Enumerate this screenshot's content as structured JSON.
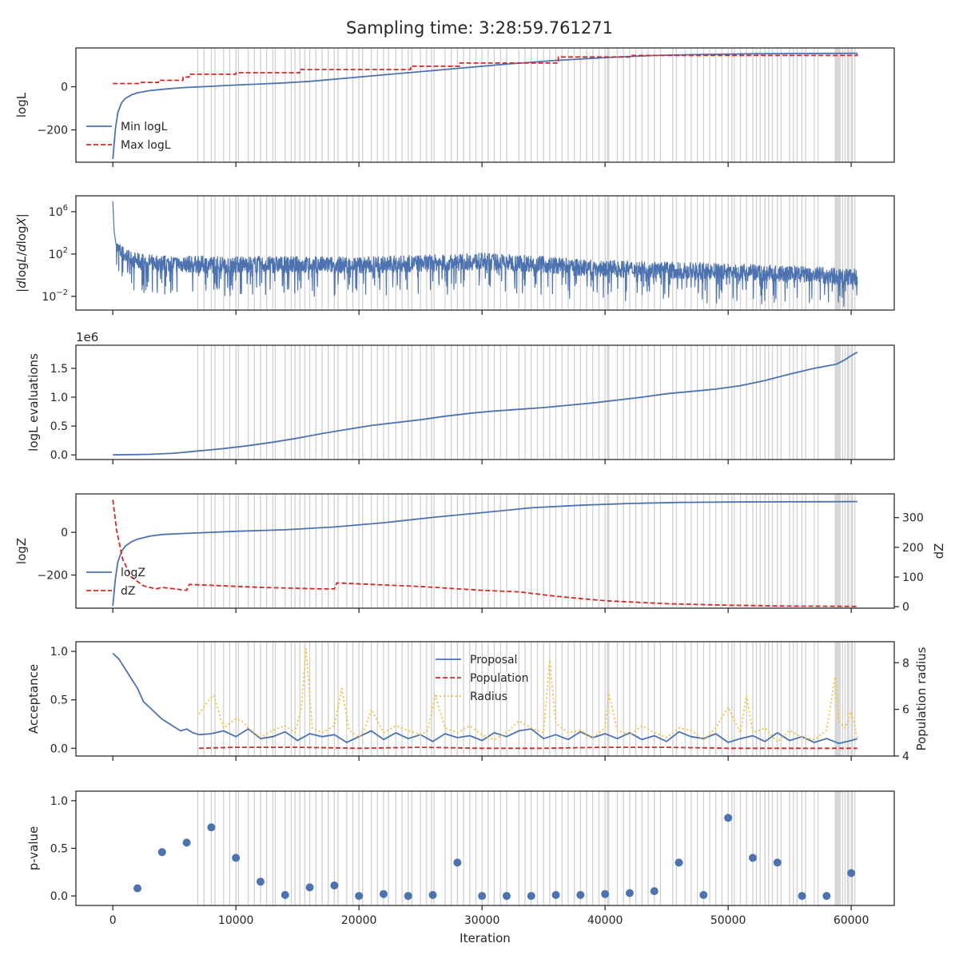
{
  "title": "Sampling time: 3:28:59.761271",
  "chart_data": [
    {
      "type": "line",
      "ylabel": "logL",
      "xlim": [
        -3000,
        63500
      ],
      "ylim": [
        -350,
        180
      ],
      "yticks": [
        0,
        -200
      ],
      "ytick_labels": [
        "0",
        "−200"
      ],
      "legend": "lower-left",
      "series": [
        {
          "name": "Min logL",
          "color": "#4c72b0",
          "dash": "solid",
          "x": [
            0,
            200,
            400,
            700,
            1000,
            1500,
            2000,
            3000,
            4000,
            5000,
            6000,
            8000,
            10000,
            12000,
            14000,
            16000,
            18000,
            20000,
            24000,
            28000,
            32000,
            36000,
            40000,
            44000,
            48000,
            52000,
            56000,
            60500
          ],
          "y": [
            -335,
            -200,
            -120,
            -75,
            -55,
            -38,
            -28,
            -18,
            -12,
            -7,
            -3,
            2,
            8,
            13,
            18,
            25,
            35,
            45,
            65,
            85,
            105,
            122,
            135,
            145,
            150,
            153,
            154,
            155
          ]
        },
        {
          "name": "Max logL",
          "color": "#d62728",
          "dash": "dashed",
          "step": true,
          "x": [
            0,
            2000,
            2200,
            3500,
            3700,
            5500,
            5700,
            6000,
            6200,
            8000,
            10000,
            15000,
            15200,
            24000,
            24200,
            28000,
            28200,
            36000,
            36200,
            42000,
            60500
          ],
          "y": [
            15,
            15,
            20,
            20,
            30,
            30,
            45,
            45,
            58,
            58,
            65,
            65,
            80,
            80,
            95,
            95,
            110,
            110,
            138,
            145,
            152
          ]
        }
      ]
    },
    {
      "type": "line",
      "ylabel": "|dlogL/dlogX|",
      "ylabel_parts": [
        "|",
        "d",
        "log",
        "L",
        "/",
        "d",
        "log",
        "X",
        "|"
      ],
      "yscale": "log",
      "xlim": [
        -3000,
        63500
      ],
      "ylim_log10": [
        -3.3,
        7.5
      ],
      "yticks_log10": [
        6,
        2,
        -2
      ],
      "ytick_labels": [
        {
          "base": "10",
          "exp": "6"
        },
        {
          "base": "10",
          "exp": "2"
        },
        {
          "base": "10",
          "exp": "−2"
        }
      ],
      "series": [
        {
          "color": "#4c72b0",
          "style": "noisy",
          "x": [
            0,
            100,
            300,
            600,
            1000,
            2000,
            4000,
            8000,
            12000,
            20000,
            25000,
            30000,
            34000,
            38000,
            44000,
            50000,
            55000,
            60500
          ],
          "y_log10": [
            7,
            4.2,
            2.6,
            2.2,
            1.8,
            1.3,
            1.1,
            1.0,
            1.0,
            0.95,
            1.1,
            1.3,
            1.1,
            0.7,
            0.5,
            0.3,
            0.1,
            -0.2
          ]
        }
      ]
    },
    {
      "type": "line",
      "ylabel": "logL evaluations",
      "offset_text": "1e6",
      "xlim": [
        -3000,
        63500
      ],
      "ylim": [
        -0.08,
        1.9
      ],
      "yticks": [
        0.0,
        0.5,
        1.0,
        1.5
      ],
      "ytick_labels": [
        "0.0",
        "0.5",
        "1.0",
        "1.5"
      ],
      "series": [
        {
          "color": "#4c72b0",
          "dash": "solid",
          "x": [
            0,
            3000,
            5000,
            7000,
            9000,
            11000,
            13000,
            15000,
            17000,
            19000,
            21000,
            23000,
            25000,
            27000,
            29000,
            31000,
            33000,
            35000,
            37000,
            39000,
            41000,
            43000,
            45000,
            47000,
            49000,
            51000,
            53000,
            55000,
            57000,
            58800,
            59500,
            60000,
            60500
          ],
          "y": [
            0.0,
            0.01,
            0.03,
            0.07,
            0.11,
            0.16,
            0.22,
            0.29,
            0.37,
            0.44,
            0.51,
            0.56,
            0.61,
            0.67,
            0.72,
            0.76,
            0.79,
            0.82,
            0.86,
            0.9,
            0.95,
            1.0,
            1.06,
            1.1,
            1.14,
            1.2,
            1.29,
            1.4,
            1.5,
            1.57,
            1.65,
            1.72,
            1.78
          ]
        }
      ]
    },
    {
      "type": "line",
      "ylabel": "logZ",
      "ylabel_right": "dZ",
      "xlim": [
        -3000,
        63500
      ],
      "ylim": [
        -355,
        180
      ],
      "yticks": [
        0,
        -200
      ],
      "ytick_labels": [
        "0",
        "−200"
      ],
      "ylim_right": [
        -5,
        380
      ],
      "yticks_right": [
        0,
        100,
        200,
        300
      ],
      "ytick_labels_right": [
        "0",
        "100",
        "200",
        "300"
      ],
      "legend": "lower-left",
      "series": [
        {
          "name": "logZ",
          "color": "#4c72b0",
          "dash": "solid",
          "axis": "left",
          "x": [
            0,
            200,
            400,
            700,
            1000,
            1500,
            2000,
            3000,
            4000,
            6000,
            8000,
            10000,
            14000,
            18000,
            22000,
            26000,
            30000,
            34000,
            38000,
            42000,
            46000,
            50000,
            55000,
            60500
          ],
          "y": [
            -345,
            -220,
            -140,
            -90,
            -65,
            -45,
            -32,
            -18,
            -10,
            -5,
            0,
            5,
            12,
            25,
            45,
            70,
            92,
            115,
            127,
            135,
            140,
            142,
            143,
            144
          ]
        },
        {
          "name": "dZ",
          "color": "#d62728",
          "dash": "dashed",
          "axis": "right",
          "x": [
            0,
            300,
            800,
            1500,
            2500,
            3500,
            4000,
            6000,
            6200,
            8000,
            12000,
            17000,
            18000,
            18200,
            25000,
            30000,
            33000,
            36000,
            40000,
            45000,
            50000,
            55000,
            60500
          ],
          "y": [
            360,
            260,
            160,
            100,
            70,
            60,
            65,
            55,
            75,
            72,
            65,
            60,
            60,
            80,
            68,
            55,
            50,
            35,
            20,
            10,
            5,
            2,
            1
          ]
        }
      ]
    },
    {
      "type": "line",
      "ylabel": "Acceptance",
      "ylabel_right": "Population radius",
      "xlim": [
        -3000,
        63500
      ],
      "ylim": [
        -0.08,
        1.1
      ],
      "yticks": [
        0.0,
        0.5,
        1.0
      ],
      "ytick_labels": [
        "0.0",
        "0.5",
        "1.0"
      ],
      "ylim_right": [
        4,
        8.9
      ],
      "yticks_right": [
        4,
        6,
        8
      ],
      "ytick_labels_right": [
        "4",
        "6",
        "8"
      ],
      "legend": "upper-center",
      "series": [
        {
          "name": "Proposal",
          "color": "#4c72b0",
          "dash": "solid",
          "axis": "left",
          "x": [
            0,
            500,
            1000,
            1500,
            2000,
            2500,
            3000,
            3500,
            4000,
            4500,
            5000,
            5500,
            6000,
            6500,
            7000,
            8000,
            9000,
            10000,
            11000,
            12000,
            13000,
            14000,
            15000,
            16000,
            17000,
            18000,
            19000,
            20000,
            21000,
            22000,
            23000,
            24000,
            25000,
            26000,
            27000,
            28000,
            29000,
            30000,
            31000,
            32000,
            33000,
            34000,
            35000,
            36000,
            37000,
            38000,
            39000,
            40000,
            41000,
            42000,
            43000,
            44000,
            45000,
            46000,
            47000,
            48000,
            49000,
            50000,
            51000,
            52000,
            53000,
            54000,
            55000,
            56000,
            57000,
            58000,
            59000,
            60000,
            60500
          ],
          "y": [
            0.98,
            0.92,
            0.82,
            0.72,
            0.62,
            0.48,
            0.42,
            0.36,
            0.3,
            0.26,
            0.22,
            0.18,
            0.2,
            0.16,
            0.14,
            0.15,
            0.18,
            0.12,
            0.2,
            0.1,
            0.12,
            0.17,
            0.08,
            0.15,
            0.12,
            0.14,
            0.06,
            0.12,
            0.18,
            0.09,
            0.16,
            0.1,
            0.14,
            0.07,
            0.15,
            0.11,
            0.13,
            0.08,
            0.16,
            0.12,
            0.18,
            0.2,
            0.1,
            0.14,
            0.09,
            0.17,
            0.11,
            0.15,
            0.1,
            0.16,
            0.09,
            0.13,
            0.07,
            0.17,
            0.12,
            0.1,
            0.15,
            0.06,
            0.1,
            0.13,
            0.07,
            0.16,
            0.08,
            0.12,
            0.06,
            0.1,
            0.05,
            0.08,
            0.1
          ]
        },
        {
          "name": "Population",
          "color": "#d62728",
          "dash": "dashed",
          "axis": "left",
          "x": [
            7000,
            10000,
            15000,
            20000,
            25000,
            30000,
            35000,
            40000,
            45000,
            50000,
            55000,
            60500
          ],
          "y": [
            0.0,
            0.01,
            0.01,
            0.0,
            0.01,
            0.0,
            0.0,
            0.01,
            0.01,
            0.0,
            0.0,
            0.0
          ]
        },
        {
          "name": "Radius",
          "color": "#f1c232",
          "dash": "dotted",
          "axis": "right",
          "x": [
            7000,
            7800,
            8200,
            9000,
            10000,
            10500,
            11000,
            12000,
            13000,
            14000,
            14800,
            15300,
            15700,
            16200,
            17000,
            18000,
            18600,
            19200,
            20000,
            20500,
            21000,
            22000,
            23000,
            24000,
            25000,
            25600,
            26200,
            27000,
            28000,
            29000,
            30000,
            31000,
            32000,
            33000,
            34000,
            35000,
            35500,
            36000,
            37000,
            38000,
            39000,
            40000,
            40300,
            41000,
            42000,
            43000,
            44000,
            45000,
            46000,
            47000,
            48000,
            49000,
            50000,
            51000,
            51500,
            52000,
            53000,
            54000,
            55000,
            56000,
            57000,
            58000,
            58700,
            59000,
            59500,
            60000,
            60500
          ],
          "y": [
            5.8,
            6.4,
            6.6,
            5.2,
            5.6,
            5.5,
            5.2,
            4.8,
            5.1,
            5.3,
            5.0,
            6.0,
            8.6,
            5.2,
            5.0,
            5.3,
            6.9,
            5.1,
            4.8,
            5.2,
            6.0,
            5.0,
            5.3,
            5.1,
            4.9,
            5.1,
            6.6,
            5.2,
            5.0,
            5.3,
            4.9,
            4.7,
            5.0,
            5.5,
            5.2,
            5.0,
            8.1,
            5.4,
            5.0,
            5.1,
            4.8,
            5.2,
            6.7,
            5.1,
            4.9,
            5.3,
            5.0,
            4.8,
            5.2,
            5.1,
            4.7,
            5.2,
            6.1,
            5.0,
            6.6,
            5.0,
            5.2,
            4.6,
            5.1,
            4.8,
            4.7,
            5.1,
            7.4,
            5.5,
            5.2,
            5.9,
            4.8
          ]
        }
      ]
    },
    {
      "type": "scatter",
      "ylabel": "p-value",
      "xlabel": "Iteration",
      "xlim": [
        -3000,
        63500
      ],
      "ylim": [
        -0.1,
        1.1
      ],
      "yticks": [
        0.0,
        0.5,
        1.0
      ],
      "ytick_labels": [
        "0.0",
        "0.5",
        "1.0"
      ],
      "xticks": [
        0,
        10000,
        20000,
        30000,
        40000,
        50000,
        60000
      ],
      "xtick_labels": [
        "0",
        "10000",
        "20000",
        "30000",
        "40000",
        "50000",
        "60000"
      ],
      "series": [
        {
          "color": "#4c72b0",
          "x": [
            2000,
            4000,
            6000,
            8000,
            10000,
            12000,
            14000,
            16000,
            18000,
            20000,
            22000,
            24000,
            26000,
            28000,
            30000,
            32000,
            34000,
            36000,
            38000,
            40000,
            42000,
            44000,
            46000,
            48000,
            50000,
            52000,
            54000,
            56000,
            58000,
            60000
          ],
          "y": [
            0.08,
            0.46,
            0.56,
            0.72,
            0.4,
            0.15,
            0.01,
            0.09,
            0.11,
            0.0,
            0.02,
            0.0,
            0.01,
            0.35,
            0.0,
            0.0,
            0.0,
            0.01,
            0.01,
            0.02,
            0.03,
            0.05,
            0.35,
            0.01,
            0.82,
            0.4,
            0.35,
            0.0,
            0.0,
            0.24
          ]
        }
      ]
    }
  ],
  "vlines": {
    "color": "#d0d0d0",
    "x": [
      6900,
      7400,
      8000,
      8300,
      9000,
      9500,
      10000,
      10200,
      11000,
      11500,
      12000,
      12500,
      13000,
      13200,
      14000,
      14500,
      14800,
      15200,
      15600,
      16000,
      16500,
      17000,
      17500,
      18000,
      18300,
      19000,
      19500,
      20000,
      20300,
      21000,
      21500,
      22000,
      22400,
      23000,
      23500,
      24000,
      24300,
      25000,
      25500,
      25900,
      26100,
      27000,
      27500,
      28000,
      28500,
      29000,
      29500,
      30000,
      30500,
      31000,
      31500,
      32000,
      33000,
      33500,
      34000,
      34500,
      35000,
      35500,
      36000,
      36500,
      37000,
      37500,
      38000,
      38500,
      39000,
      39500,
      40000,
      40200,
      40300,
      41000,
      41500,
      42000,
      42500,
      43000,
      43500,
      44000,
      44500,
      45500,
      45800,
      46500,
      47000,
      47500,
      48000,
      48500,
      49000,
      49500,
      50000,
      50300,
      50500,
      51000,
      51500,
      52000,
      52300,
      52600,
      53000,
      53300,
      53600,
      54000,
      54300,
      55000,
      55300,
      55600,
      56000,
      56300,
      57000,
      57300,
      58700,
      58800,
      58900,
      59000,
      59100,
      59300,
      59500,
      59700,
      59800,
      60000,
      60100,
      60300
    ]
  }
}
